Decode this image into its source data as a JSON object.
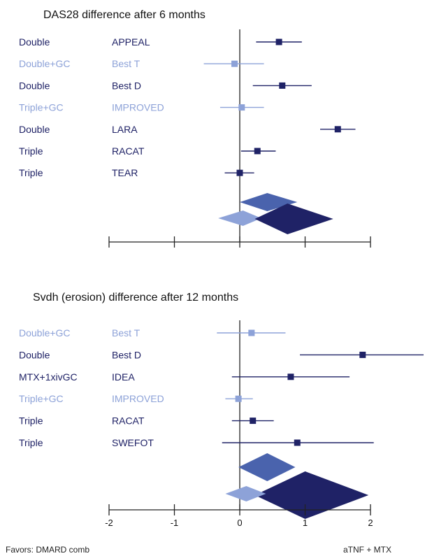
{
  "colors": {
    "dark": "#1f2266",
    "light": "#8da2d8",
    "mid": "#4a63ad",
    "axis": "#222222"
  },
  "footer": {
    "left": "Favors: DMARD comb",
    "right": "aTNF + MTX"
  },
  "chart_data": [
    {
      "type": "forest",
      "title": "DAS28 difference after 6 months",
      "xlim": [
        -2,
        2
      ],
      "ticks": [
        -2,
        -1,
        0,
        1,
        2
      ],
      "show_tick_labels": false,
      "rows": [
        {
          "group": "Double",
          "study": "APPEAL",
          "est": 0.6,
          "lo": 0.25,
          "hi": 0.95,
          "style": "dark"
        },
        {
          "group": "Double+GC",
          "study": "Best T",
          "est": -0.08,
          "lo": -0.55,
          "hi": 0.37,
          "style": "light"
        },
        {
          "group": "Double",
          "study": "Best D",
          "est": 0.65,
          "lo": 0.2,
          "hi": 1.1,
          "style": "dark"
        },
        {
          "group": "Triple+GC",
          "study": "IMPROVED",
          "est": 0.03,
          "lo": -0.3,
          "hi": 0.37,
          "style": "light"
        },
        {
          "group": "Double",
          "study": "LARA",
          "est": 1.5,
          "lo": 1.23,
          "hi": 1.77,
          "style": "dark"
        },
        {
          "group": "Triple",
          "study": "RACAT",
          "est": 0.27,
          "lo": 0.02,
          "hi": 0.55,
          "style": "dark"
        },
        {
          "group": "Triple",
          "study": "TEAR",
          "est": 0.0,
          "lo": -0.23,
          "hi": 0.22,
          "style": "dark"
        }
      ],
      "summaries": [
        {
          "est": 0.42,
          "lo": 0.0,
          "hi": 0.88,
          "style": "mid"
        },
        {
          "est": 0.05,
          "lo": -0.33,
          "hi": 0.33,
          "style": "light"
        },
        {
          "est": 0.73,
          "lo": 0.23,
          "hi": 1.43,
          "style": "dark"
        }
      ]
    },
    {
      "type": "forest",
      "title": "Svdh (erosion) difference after 12 months",
      "xlim": [
        -2,
        2
      ],
      "ticks": [
        -2,
        -1,
        0,
        1,
        2
      ],
      "show_tick_labels": true,
      "tick_labels": [
        "-2",
        "-1",
        "0",
        "1",
        "2"
      ],
      "rows": [
        {
          "group": "Double+GC",
          "study": "Best T",
          "est": 0.18,
          "lo": -0.35,
          "hi": 0.7,
          "style": "light"
        },
        {
          "group": "Double",
          "study": "Best D",
          "est": 1.88,
          "lo": 0.92,
          "hi": 2.85,
          "style": "dark"
        },
        {
          "group": "MTX+1xivGC",
          "study": "IDEA",
          "est": 0.78,
          "lo": -0.12,
          "hi": 1.68,
          "style": "dark"
        },
        {
          "group": "Triple+GC",
          "study": "IMPROVED",
          "est": -0.02,
          "lo": -0.22,
          "hi": 0.2,
          "style": "light"
        },
        {
          "group": "Triple",
          "study": "RACAT",
          "est": 0.2,
          "lo": -0.12,
          "hi": 0.52,
          "style": "dark"
        },
        {
          "group": "Triple",
          "study": "SWEFOT",
          "est": 0.88,
          "lo": -0.27,
          "hi": 2.05,
          "style": "dark"
        }
      ],
      "summaries": [
        {
          "est": 0.42,
          "lo": -0.02,
          "hi": 0.85,
          "style": "mid"
        },
        {
          "est": 1.0,
          "lo": 0.23,
          "hi": 1.97,
          "style": "dark"
        },
        {
          "est": 0.1,
          "lo": -0.22,
          "hi": 0.4,
          "style": "light"
        }
      ]
    }
  ]
}
